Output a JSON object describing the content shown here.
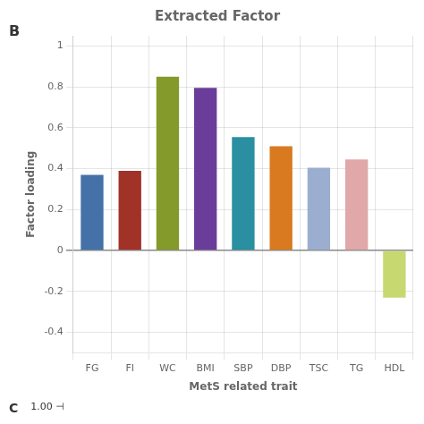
{
  "chart_data": {
    "type": "bar",
    "title": "Extracted Factor",
    "annotations": [
      "B",
      "C",
      "1.00 ⊣"
    ],
    "categories": [
      "FG",
      "FI",
      "WC",
      "BMI",
      "SBP",
      "DBP",
      "TSC",
      "TG",
      "HDL"
    ],
    "values": [
      0.37,
      0.39,
      0.85,
      0.795,
      0.555,
      0.51,
      0.405,
      0.445,
      -0.23
    ],
    "colors": [
      "#4472a8",
      "#a03228",
      "#849a2a",
      "#6a3d9a",
      "#2a8fa0",
      "#d97a20",
      "#9baed0",
      "#e0a8a8",
      "#c8d870"
    ],
    "x_label": "MetS related trait",
    "y_label": "Factor loading",
    "ylim": [
      -0.5,
      1.05
    ],
    "yticks": [
      -0.4,
      -0.2,
      0,
      0.2,
      0.4,
      0.6,
      0.8,
      1
    ],
    "grid": true
  }
}
